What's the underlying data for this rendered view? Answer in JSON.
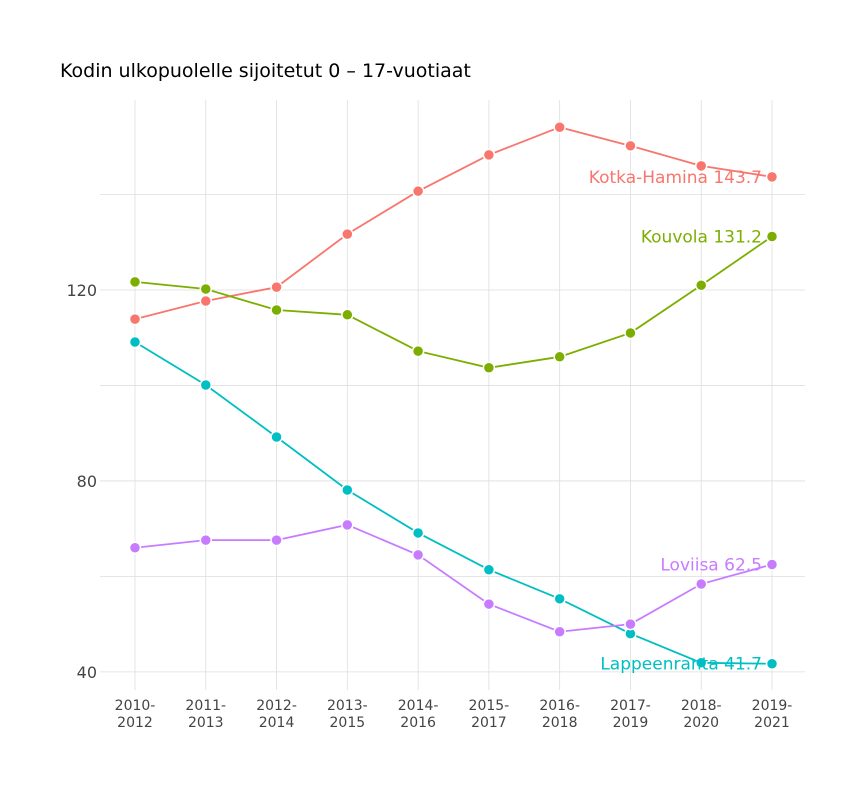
{
  "chart_data": {
    "type": "line",
    "title": "Kodin ulkopuolelle sijoitetut 0 – 17-vuotiaat",
    "xlabel": "",
    "ylabel": "",
    "categories": [
      "2010-\n2012",
      "2011-\n2013",
      "2012-\n2014",
      "2013-\n2015",
      "2014-\n2016",
      "2015-\n2017",
      "2016-\n2018",
      "2017-\n2019",
      "2018-\n2020",
      "2019-\n2021"
    ],
    "yticks": [
      40,
      80,
      120
    ],
    "ylim": [
      36.2,
      159.8
    ],
    "grid": true,
    "legend": "none (end-of-line labels)",
    "series": [
      {
        "name": "Kotka-Hamina",
        "color": "#F8766D",
        "end_label": "Kotka-Hamina 143.7",
        "values": [
          113.9,
          117.7,
          120.6,
          131.7,
          140.7,
          148.3,
          154.1,
          150.2,
          146.0,
          143.7
        ]
      },
      {
        "name": "Kouvola",
        "color": "#7CAE00",
        "end_label": "Kouvola 131.2",
        "values": [
          121.7,
          120.2,
          115.8,
          114.8,
          107.2,
          103.7,
          106.0,
          111.0,
          121.0,
          131.2
        ]
      },
      {
        "name": "Lappeenranta",
        "color": "#00BFC4",
        "end_label": "Lappeenranta 41.7",
        "values": [
          109.1,
          100.1,
          89.2,
          78.1,
          69.1,
          61.4,
          55.3,
          48.0,
          41.9,
          41.7
        ]
      },
      {
        "name": "Loviisa",
        "color": "#C77CFF",
        "end_label": "Loviisa 62.5",
        "values": [
          66.0,
          67.6,
          67.6,
          70.8,
          64.5,
          54.2,
          48.4,
          50.0,
          58.4,
          62.5
        ]
      }
    ]
  }
}
